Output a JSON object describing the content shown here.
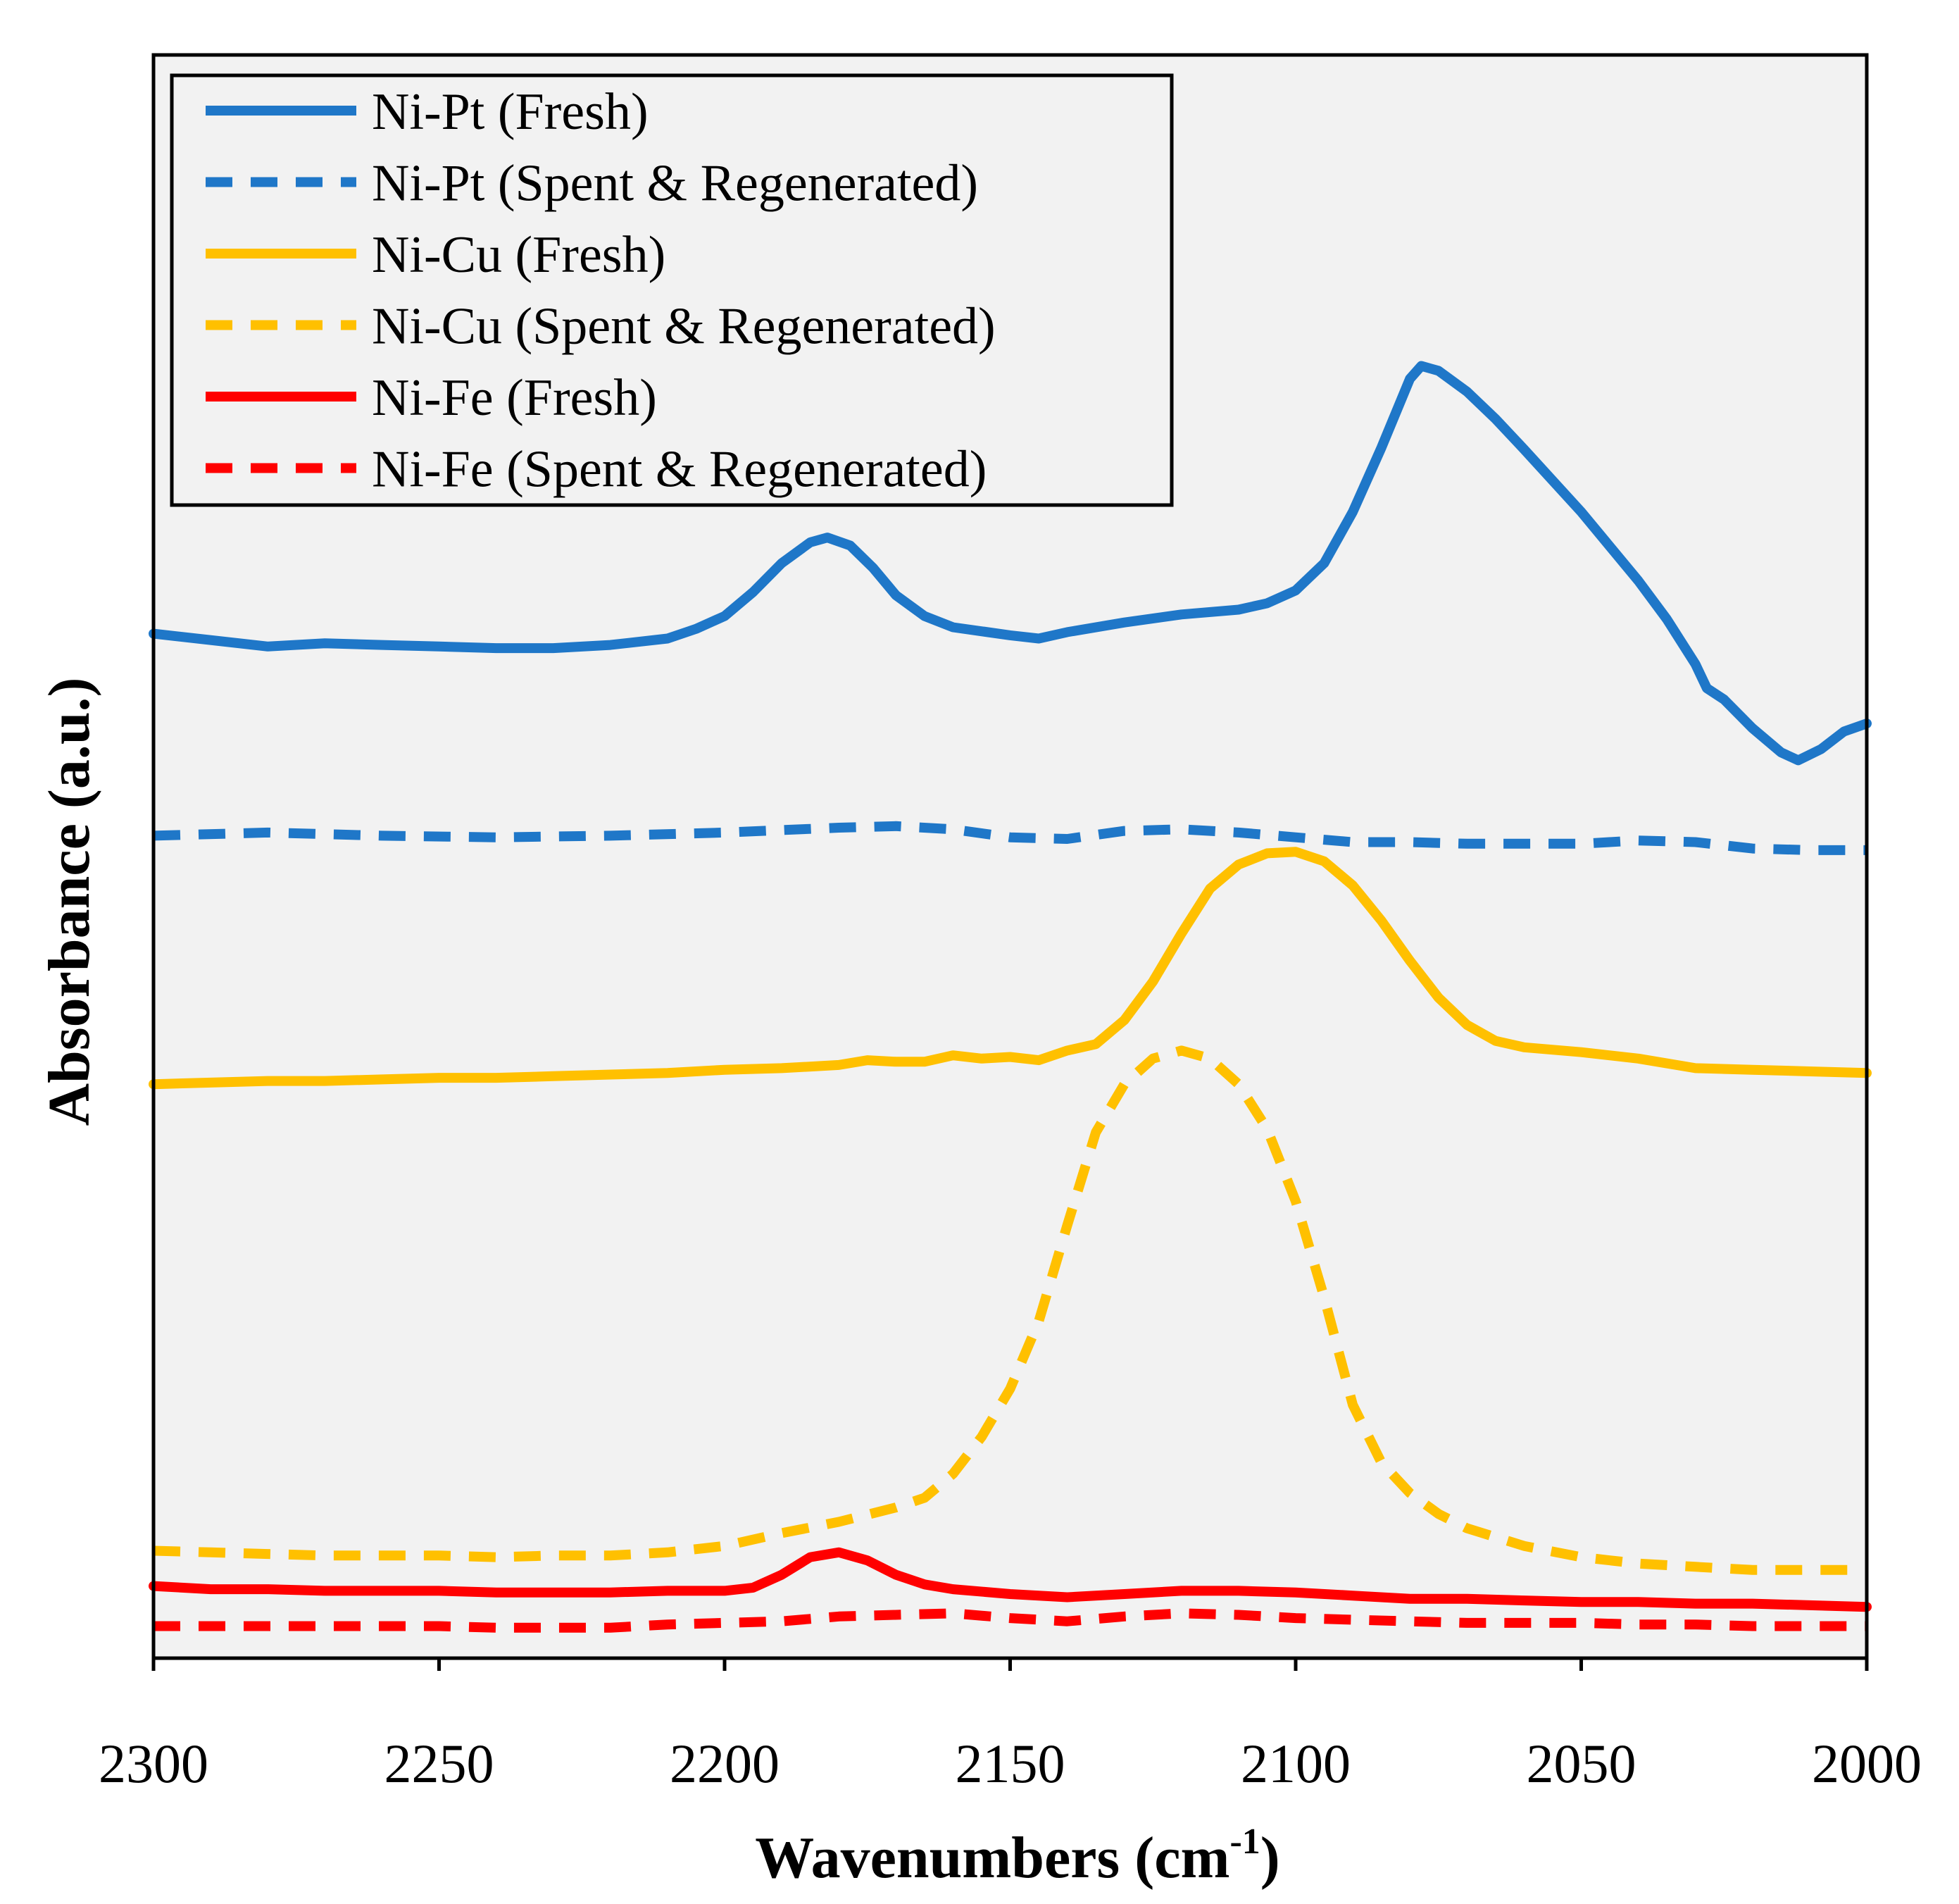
{
  "chart_data": {
    "type": "line",
    "title": "",
    "xlabel": "Wavenumbers (cm",
    "xlabel_sup": "-1",
    "xlabel_suffix": ")",
    "ylabel": "Absorbance (a.u.)",
    "xlim": [
      2300,
      2000
    ],
    "x_reversed": true,
    "ylim": [
      0,
      100
    ],
    "y_ticks_shown": false,
    "grid": false,
    "plot_background": "#f2f2f2",
    "x_ticks": [
      2300,
      2250,
      2200,
      2150,
      2100,
      2050,
      2000
    ],
    "x_tick_labels": [
      "2300",
      "2250",
      "2200",
      "2150",
      "2100",
      "2050",
      "2000"
    ],
    "legend_position": "top-left",
    "series": [
      {
        "name": "Ni-Pt (Fresh)",
        "color": "#1f77c8",
        "style": "solid",
        "points": [
          [
            2300,
            63.9
          ],
          [
            2290,
            63.5
          ],
          [
            2280,
            63.1
          ],
          [
            2270,
            63.3
          ],
          [
            2260,
            63.2
          ],
          [
            2250,
            63.1
          ],
          [
            2240,
            63.0
          ],
          [
            2230,
            63.0
          ],
          [
            2220,
            63.2
          ],
          [
            2210,
            63.6
          ],
          [
            2205,
            64.2
          ],
          [
            2200,
            65.0
          ],
          [
            2195,
            66.5
          ],
          [
            2190,
            68.3
          ],
          [
            2185,
            69.6
          ],
          [
            2182,
            69.9
          ],
          [
            2178,
            69.4
          ],
          [
            2174,
            68.0
          ],
          [
            2170,
            66.3
          ],
          [
            2165,
            65.0
          ],
          [
            2160,
            64.3
          ],
          [
            2150,
            63.8
          ],
          [
            2145,
            63.6
          ],
          [
            2140,
            64.0
          ],
          [
            2130,
            64.6
          ],
          [
            2120,
            65.1
          ],
          [
            2110,
            65.4
          ],
          [
            2105,
            65.8
          ],
          [
            2100,
            66.6
          ],
          [
            2095,
            68.3
          ],
          [
            2090,
            71.5
          ],
          [
            2085,
            75.5
          ],
          [
            2080,
            79.8
          ],
          [
            2078,
            80.6
          ],
          [
            2075,
            80.3
          ],
          [
            2070,
            79.0
          ],
          [
            2065,
            77.3
          ],
          [
            2060,
            75.4
          ],
          [
            2050,
            71.5
          ],
          [
            2040,
            67.2
          ],
          [
            2035,
            64.8
          ],
          [
            2030,
            62.0
          ],
          [
            2028,
            60.5
          ],
          [
            2025,
            59.8
          ],
          [
            2020,
            58.0
          ],
          [
            2015,
            56.5
          ],
          [
            2012,
            56.0
          ],
          [
            2008,
            56.7
          ],
          [
            2004,
            57.8
          ],
          [
            2000,
            58.3
          ]
        ]
      },
      {
        "name": "Ni-Pt (Spent & Regenerated)",
        "color": "#1f77c8",
        "style": "dashed",
        "points": [
          [
            2300,
            51.3
          ],
          [
            2280,
            51.5
          ],
          [
            2260,
            51.3
          ],
          [
            2240,
            51.2
          ],
          [
            2220,
            51.3
          ],
          [
            2200,
            51.5
          ],
          [
            2180,
            51.8
          ],
          [
            2170,
            51.9
          ],
          [
            2160,
            51.7
          ],
          [
            2150,
            51.2
          ],
          [
            2140,
            51.1
          ],
          [
            2130,
            51.6
          ],
          [
            2120,
            51.7
          ],
          [
            2110,
            51.5
          ],
          [
            2100,
            51.2
          ],
          [
            2090,
            50.9
          ],
          [
            2080,
            50.9
          ],
          [
            2070,
            50.8
          ],
          [
            2060,
            50.8
          ],
          [
            2050,
            50.8
          ],
          [
            2040,
            51.0
          ],
          [
            2030,
            50.9
          ],
          [
            2020,
            50.5
          ],
          [
            2010,
            50.4
          ],
          [
            2000,
            50.4
          ]
        ]
      },
      {
        "name": "Ni-Cu (Fresh)",
        "color": "#ffc000",
        "style": "solid",
        "points": [
          [
            2300,
            35.8
          ],
          [
            2290,
            35.9
          ],
          [
            2280,
            36.0
          ],
          [
            2270,
            36.0
          ],
          [
            2260,
            36.1
          ],
          [
            2250,
            36.2
          ],
          [
            2240,
            36.2
          ],
          [
            2230,
            36.3
          ],
          [
            2220,
            36.4
          ],
          [
            2210,
            36.5
          ],
          [
            2200,
            36.7
          ],
          [
            2190,
            36.8
          ],
          [
            2180,
            37.0
          ],
          [
            2175,
            37.3
          ],
          [
            2170,
            37.2
          ],
          [
            2165,
            37.2
          ],
          [
            2160,
            37.6
          ],
          [
            2155,
            37.4
          ],
          [
            2150,
            37.5
          ],
          [
            2145,
            37.3
          ],
          [
            2140,
            37.9
          ],
          [
            2135,
            38.3
          ],
          [
            2130,
            39.8
          ],
          [
            2125,
            42.2
          ],
          [
            2120,
            45.2
          ],
          [
            2115,
            48.0
          ],
          [
            2110,
            49.5
          ],
          [
            2105,
            50.2
          ],
          [
            2100,
            50.3
          ],
          [
            2095,
            49.7
          ],
          [
            2090,
            48.2
          ],
          [
            2085,
            46.0
          ],
          [
            2080,
            43.5
          ],
          [
            2075,
            41.2
          ],
          [
            2070,
            39.5
          ],
          [
            2065,
            38.5
          ],
          [
            2060,
            38.1
          ],
          [
            2050,
            37.8
          ],
          [
            2040,
            37.4
          ],
          [
            2030,
            36.8
          ],
          [
            2020,
            36.7
          ],
          [
            2010,
            36.6
          ],
          [
            2000,
            36.5
          ]
        ]
      },
      {
        "name": "Ni-Cu (Spent & Regenerated)",
        "color": "#ffc000",
        "style": "dashed",
        "points": [
          [
            2300,
            6.7
          ],
          [
            2290,
            6.6
          ],
          [
            2280,
            6.5
          ],
          [
            2270,
            6.4
          ],
          [
            2260,
            6.4
          ],
          [
            2250,
            6.4
          ],
          [
            2240,
            6.3
          ],
          [
            2230,
            6.4
          ],
          [
            2220,
            6.4
          ],
          [
            2210,
            6.6
          ],
          [
            2200,
            7.0
          ],
          [
            2190,
            7.8
          ],
          [
            2180,
            8.5
          ],
          [
            2170,
            9.4
          ],
          [
            2165,
            10.0
          ],
          [
            2160,
            11.5
          ],
          [
            2155,
            13.8
          ],
          [
            2150,
            16.8
          ],
          [
            2145,
            21.0
          ],
          [
            2140,
            27.0
          ],
          [
            2135,
            32.8
          ],
          [
            2130,
            35.8
          ],
          [
            2125,
            37.4
          ],
          [
            2120,
            37.9
          ],
          [
            2115,
            37.4
          ],
          [
            2110,
            35.8
          ],
          [
            2105,
            33.0
          ],
          [
            2100,
            28.5
          ],
          [
            2095,
            22.5
          ],
          [
            2090,
            15.8
          ],
          [
            2085,
            12.2
          ],
          [
            2080,
            10.3
          ],
          [
            2075,
            9.0
          ],
          [
            2070,
            8.1
          ],
          [
            2060,
            7.0
          ],
          [
            2050,
            6.3
          ],
          [
            2040,
            5.9
          ],
          [
            2030,
            5.7
          ],
          [
            2020,
            5.5
          ],
          [
            2010,
            5.5
          ],
          [
            2000,
            5.5
          ]
        ]
      },
      {
        "name": "Ni-Fe (Fresh)",
        "color": "#ff0000",
        "style": "solid",
        "points": [
          [
            2300,
            4.5
          ],
          [
            2290,
            4.3
          ],
          [
            2280,
            4.3
          ],
          [
            2270,
            4.2
          ],
          [
            2260,
            4.2
          ],
          [
            2250,
            4.2
          ],
          [
            2240,
            4.1
          ],
          [
            2230,
            4.1
          ],
          [
            2220,
            4.1
          ],
          [
            2210,
            4.2
          ],
          [
            2200,
            4.2
          ],
          [
            2195,
            4.4
          ],
          [
            2190,
            5.2
          ],
          [
            2185,
            6.3
          ],
          [
            2180,
            6.6
          ],
          [
            2175,
            6.1
          ],
          [
            2170,
            5.2
          ],
          [
            2165,
            4.6
          ],
          [
            2160,
            4.3
          ],
          [
            2150,
            4.0
          ],
          [
            2145,
            3.9
          ],
          [
            2140,
            3.8
          ],
          [
            2130,
            4.0
          ],
          [
            2120,
            4.2
          ],
          [
            2110,
            4.2
          ],
          [
            2100,
            4.1
          ],
          [
            2090,
            3.9
          ],
          [
            2080,
            3.7
          ],
          [
            2070,
            3.7
          ],
          [
            2060,
            3.6
          ],
          [
            2050,
            3.5
          ],
          [
            2040,
            3.5
          ],
          [
            2030,
            3.4
          ],
          [
            2020,
            3.4
          ],
          [
            2010,
            3.3
          ],
          [
            2000,
            3.2
          ]
        ]
      },
      {
        "name": "Ni-Fe (Spent & Regenerated)",
        "color": "#ff0000",
        "style": "dashed",
        "points": [
          [
            2300,
            2.0
          ],
          [
            2290,
            2.0
          ],
          [
            2280,
            2.0
          ],
          [
            2270,
            2.0
          ],
          [
            2260,
            2.0
          ],
          [
            2250,
            2.0
          ],
          [
            2240,
            1.9
          ],
          [
            2230,
            1.9
          ],
          [
            2220,
            1.9
          ],
          [
            2210,
            2.1
          ],
          [
            2200,
            2.2
          ],
          [
            2190,
            2.3
          ],
          [
            2180,
            2.6
          ],
          [
            2170,
            2.7
          ],
          [
            2160,
            2.8
          ],
          [
            2150,
            2.5
          ],
          [
            2140,
            2.3
          ],
          [
            2130,
            2.6
          ],
          [
            2120,
            2.8
          ],
          [
            2110,
            2.7
          ],
          [
            2100,
            2.5
          ],
          [
            2090,
            2.4
          ],
          [
            2080,
            2.3
          ],
          [
            2070,
            2.2
          ],
          [
            2060,
            2.2
          ],
          [
            2050,
            2.2
          ],
          [
            2040,
            2.1
          ],
          [
            2030,
            2.1
          ],
          [
            2020,
            2.0
          ],
          [
            2010,
            2.0
          ],
          [
            2000,
            2.0
          ]
        ]
      }
    ]
  }
}
